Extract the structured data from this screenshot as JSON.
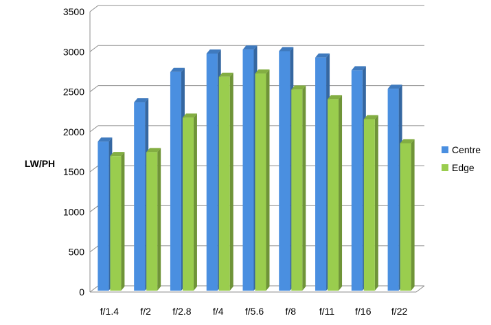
{
  "chart_data": {
    "type": "bar",
    "three_d": true,
    "title": "",
    "xlabel": "",
    "ylabel": "LW/PH",
    "categories": [
      "f/1.4",
      "f/2",
      "f/2.8",
      "f/4",
      "f/5.6",
      "f/8",
      "f/11",
      "f/16",
      "f/22"
    ],
    "series": [
      {
        "name": "Centre",
        "color": "#4A8FE0",
        "values": [
          1860,
          2350,
          2730,
          2960,
          3010,
          2990,
          2910,
          2750,
          2520
        ]
      },
      {
        "name": "Edge",
        "color": "#9ACD4E",
        "values": [
          1680,
          1730,
          2160,
          2670,
          2710,
          2510,
          2390,
          2140,
          1840
        ]
      }
    ],
    "ylim": [
      0,
      3500
    ],
    "yticks": [
      "0",
      "500",
      "1000",
      "1500",
      "2000",
      "2500",
      "3000",
      "3500"
    ],
    "grid": true,
    "legend_position": "right"
  }
}
